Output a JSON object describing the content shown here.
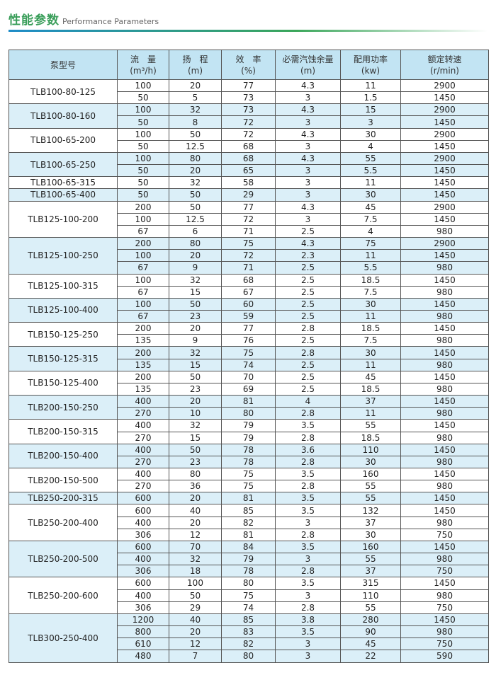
{
  "header": {
    "title": "性能参数",
    "subtitle": "Performance Parameters"
  },
  "table": {
    "columns": [
      {
        "name": "泵型号"
      },
      {
        "name": "流　量",
        "unit": "(m³/h)"
      },
      {
        "name": "扬　程",
        "unit": "(m)"
      },
      {
        "name": "效　率",
        "unit": "(%)"
      },
      {
        "name": "必需汽蚀余量",
        "unit": "(m)"
      },
      {
        "name": "配用功率",
        "unit": "(kw)"
      },
      {
        "name": "额定转速",
        "unit": "(r/min)"
      }
    ],
    "groups": [
      {
        "model": "TLB100-80-125",
        "rows": [
          [
            100,
            20,
            77,
            4.3,
            11,
            2900
          ],
          [
            50,
            5,
            73,
            3,
            1.5,
            1450
          ]
        ]
      },
      {
        "model": "TLB100-80-160",
        "rows": [
          [
            100,
            32,
            73,
            4.3,
            15,
            2900
          ],
          [
            50,
            8,
            72,
            3,
            3,
            1450
          ]
        ]
      },
      {
        "model": "TLB100-65-200",
        "rows": [
          [
            100,
            50,
            72,
            4.3,
            30,
            2900
          ],
          [
            50,
            12.5,
            68,
            3,
            4,
            1450
          ]
        ]
      },
      {
        "model": "TLB100-65-250",
        "rows": [
          [
            100,
            80,
            68,
            4.3,
            55,
            2900
          ],
          [
            50,
            20,
            65,
            3,
            5.5,
            1450
          ]
        ]
      },
      {
        "model": "TLB100-65-315",
        "rows": [
          [
            50,
            32,
            58,
            3,
            11,
            1450
          ]
        ]
      },
      {
        "model": "TLB100-65-400",
        "rows": [
          [
            50,
            50,
            29,
            3,
            30,
            1450
          ]
        ]
      },
      {
        "model": "TLB125-100-200",
        "rows": [
          [
            200,
            50,
            77,
            4.3,
            45,
            2900
          ],
          [
            100,
            12.5,
            72,
            3,
            7.5,
            1450
          ],
          [
            67,
            6,
            71,
            2.5,
            4,
            980
          ]
        ]
      },
      {
        "model": "TLB125-100-250",
        "rows": [
          [
            200,
            80,
            75,
            4.3,
            75,
            2900
          ],
          [
            100,
            20,
            72,
            2.3,
            11,
            1450
          ],
          [
            67,
            9,
            71,
            2.5,
            5.5,
            980
          ]
        ]
      },
      {
        "model": "TLB125-100-315",
        "rows": [
          [
            100,
            32,
            68,
            2.5,
            18.5,
            1450
          ],
          [
            67,
            15,
            67,
            2.5,
            7.5,
            980
          ]
        ]
      },
      {
        "model": "TLB125-100-400",
        "rows": [
          [
            100,
            50,
            60,
            2.5,
            30,
            1450
          ],
          [
            67,
            23,
            59,
            2.5,
            11,
            980
          ]
        ]
      },
      {
        "model": "TLB150-125-250",
        "rows": [
          [
            200,
            20,
            77,
            2.8,
            18.5,
            1450
          ],
          [
            135,
            9,
            76,
            2.5,
            7.5,
            980
          ]
        ]
      },
      {
        "model": "TLB150-125-315",
        "rows": [
          [
            200,
            32,
            75,
            2.8,
            30,
            1450
          ],
          [
            135,
            15,
            74,
            2.5,
            11,
            980
          ]
        ]
      },
      {
        "model": "TLB150-125-400",
        "rows": [
          [
            200,
            50,
            70,
            2.5,
            45,
            1450
          ],
          [
            135,
            23,
            69,
            2.5,
            18.5,
            980
          ]
        ]
      },
      {
        "model": "TLB200-150-250",
        "rows": [
          [
            400,
            20,
            81,
            4,
            37,
            1450
          ],
          [
            270,
            10,
            80,
            2.8,
            11,
            980
          ]
        ]
      },
      {
        "model": "TLB200-150-315",
        "rows": [
          [
            400,
            32,
            79,
            3.5,
            55,
            1450
          ],
          [
            270,
            15,
            79,
            2.8,
            18.5,
            980
          ]
        ]
      },
      {
        "model": "TLB200-150-400",
        "rows": [
          [
            400,
            50,
            78,
            3.6,
            110,
            1450
          ],
          [
            270,
            23,
            78,
            2.8,
            30,
            980
          ]
        ]
      },
      {
        "model": "TLB200-150-500",
        "rows": [
          [
            400,
            80,
            75,
            3.5,
            160,
            1450
          ],
          [
            270,
            36,
            75,
            2.8,
            55,
            980
          ]
        ]
      },
      {
        "model": "TLB250-200-315",
        "rows": [
          [
            600,
            20,
            81,
            3.5,
            55,
            1450
          ]
        ]
      },
      {
        "model": "TLB250-200-400",
        "rows": [
          [
            600,
            40,
            85,
            3.5,
            132,
            1450
          ],
          [
            400,
            20,
            82,
            3,
            37,
            980
          ],
          [
            306,
            12,
            81,
            2.8,
            30,
            750
          ]
        ]
      },
      {
        "model": "TLB250-200-500",
        "rows": [
          [
            600,
            70,
            84,
            3.5,
            160,
            1450
          ],
          [
            400,
            32,
            79,
            3,
            55,
            980
          ],
          [
            306,
            18,
            78,
            2.8,
            37,
            750
          ]
        ]
      },
      {
        "model": "TLB250-200-600",
        "rows": [
          [
            600,
            100,
            80,
            3.5,
            315,
            1450
          ],
          [
            400,
            50,
            75,
            3,
            110,
            980
          ],
          [
            306,
            29,
            74,
            2.8,
            55,
            750
          ]
        ]
      },
      {
        "model": "TLB300-250-400",
        "rows": [
          [
            1200,
            40,
            85,
            3.8,
            280,
            1450
          ],
          [
            800,
            20,
            83,
            3.5,
            90,
            980
          ],
          [
            610,
            12,
            82,
            3,
            45,
            750
          ],
          [
            480,
            7,
            80,
            3,
            22,
            590
          ]
        ]
      }
    ]
  }
}
